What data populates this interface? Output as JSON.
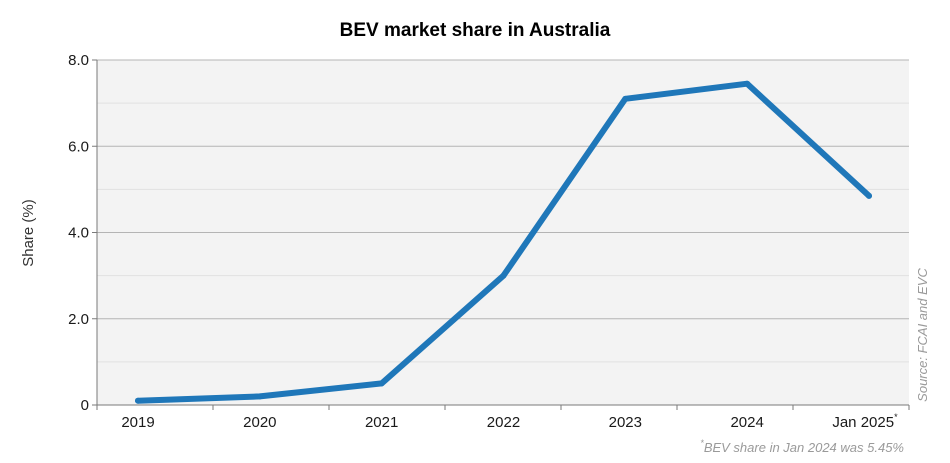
{
  "colors": {
    "line": "#1f77b9",
    "plot_bg": "#f3f3f3",
    "major_grid": "#b4b4b4",
    "minor_grid": "#e1e1e1",
    "axis": "#7a7a7a",
    "muted_text": "#9a9a9a"
  },
  "chart_data": {
    "type": "line",
    "title": "BEV market share in Australia",
    "ylabel": "Share (%)",
    "xlabel": "",
    "categories": [
      "2019",
      "2020",
      "2021",
      "2022",
      "2023",
      "2024",
      "Jan 2025"
    ],
    "category_note_marker": "*",
    "series": [
      {
        "values": [
          0.1,
          0.2,
          0.5,
          3.0,
          7.1,
          7.45,
          4.85
        ]
      }
    ],
    "ylim": [
      0,
      8
    ],
    "yticks": [
      {
        "value": 0,
        "label": "0"
      },
      {
        "value": 2,
        "label": "2.0"
      },
      {
        "value": 4,
        "label": "4.0"
      },
      {
        "value": 6,
        "label": "6.0"
      },
      {
        "value": 8,
        "label": "8.0"
      }
    ],
    "minor_grid_step": 1,
    "grid": true,
    "source_note": "Source: FCAI and EVC",
    "footnote_marker": "*",
    "footnote": "BEV share in Jan 2024 was 5.45%"
  }
}
